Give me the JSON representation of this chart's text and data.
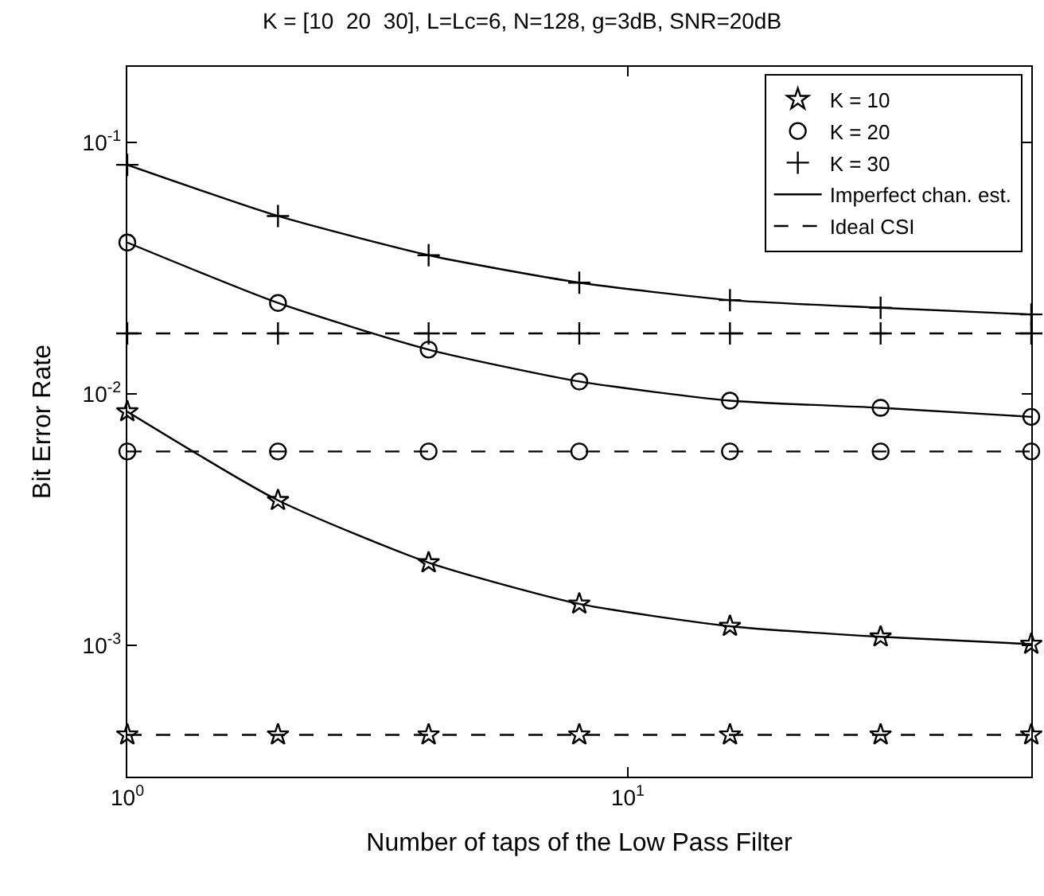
{
  "chart_data": {
    "type": "line",
    "title": "K = [10  20  30], L=Lc=6, N=128, g=3dB, SNR=20dB",
    "xlabel": "Number of taps of the Low Pass Filter",
    "ylabel": "Bit Error Rate",
    "log": "xy",
    "legend": "top right",
    "xlim": [
      1,
      64
    ],
    "ylim": [
      0.0003,
      0.2
    ],
    "xticks": [
      {
        "value": 1,
        "label": "10$^{0}$"
      },
      {
        "value": 10,
        "label": "10$^{1}$"
      }
    ],
    "yticks": [
      {
        "value": 0.001,
        "label": "10$^{-3}$"
      },
      {
        "value": 0.01,
        "label": "10$^{-2}$"
      },
      {
        "value": 0.1,
        "label": "10$^{-1}$"
      }
    ],
    "series": [
      {
        "name": "K = 10",
        "type": "scatter",
        "marker": "star",
        "color": "#000000",
        "x": [
          1,
          2,
          4,
          8,
          16,
          32,
          64,
          1,
          2,
          4,
          8,
          16,
          32,
          64
        ],
        "values": [
          0.0085,
          0.00377,
          0.00213,
          0.00146,
          0.00119,
          0.00108,
          0.00101,
          0.00044,
          0.00044,
          0.00044,
          0.00044,
          0.00044,
          0.00044,
          0.00044
        ]
      },
      {
        "name": "K = 20",
        "type": "scatter",
        "marker": "circle",
        "color": "#000000",
        "x": [
          1,
          2,
          4,
          8,
          16,
          32,
          64,
          1,
          2,
          4,
          8,
          16,
          32,
          64
        ],
        "values": [
          0.04,
          0.023,
          0.015,
          0.0112,
          0.0094,
          0.0088,
          0.0081,
          0.0059,
          0.0059,
          0.0059,
          0.0059,
          0.0059,
          0.0059,
          0.0059
        ]
      },
      {
        "name": "K = 30",
        "type": "scatter",
        "marker": "cross",
        "color": "#000000",
        "x": [
          1,
          2,
          4,
          8,
          16,
          32,
          64,
          1,
          2,
          4,
          8,
          16,
          32,
          64
        ],
        "values": [
          0.0815,
          0.051,
          0.0356,
          0.0277,
          0.0236,
          0.022,
          0.0207,
          0.0174,
          0.0174,
          0.0174,
          0.0174,
          0.0174,
          0.0174,
          0.0174
        ]
      },
      {
        "name": "Imperfect chan. est.",
        "line_style": "solid",
        "color": "#000000",
        "x": [
          1,
          2,
          4,
          8,
          16,
          32,
          64
        ],
        "values": [
          0.0085,
          0.00377,
          0.00213,
          0.00146,
          0.00119,
          0.00108,
          0.00101
        ]
      },
      {
        "line_style": "solid",
        "color": "#000000",
        "x": [
          1,
          2,
          4,
          8,
          16,
          32,
          64
        ],
        "values": [
          0.04,
          0.023,
          0.015,
          0.0112,
          0.0094,
          0.0088,
          0.0081
        ]
      },
      {
        "line_style": "solid",
        "color": "#000000",
        "x": [
          1,
          2,
          4,
          8,
          16,
          32,
          64
        ],
        "values": [
          0.0815,
          0.051,
          0.0356,
          0.0277,
          0.0236,
          0.022,
          0.0207
        ]
      },
      {
        "name": "Ideal CSI",
        "line_style": "dashed",
        "color": "#000000",
        "x": [
          1,
          64
        ],
        "values": [
          0.00044,
          0.00044
        ]
      },
      {
        "line_style": "dashed",
        "color": "#000000",
        "x": [
          1,
          64
        ],
        "values": [
          0.0059,
          0.0059
        ]
      },
      {
        "line_style": "dashed",
        "color": "#000000",
        "x": [
          1,
          64
        ],
        "values": [
          0.0174,
          0.0174
        ]
      }
    ]
  }
}
